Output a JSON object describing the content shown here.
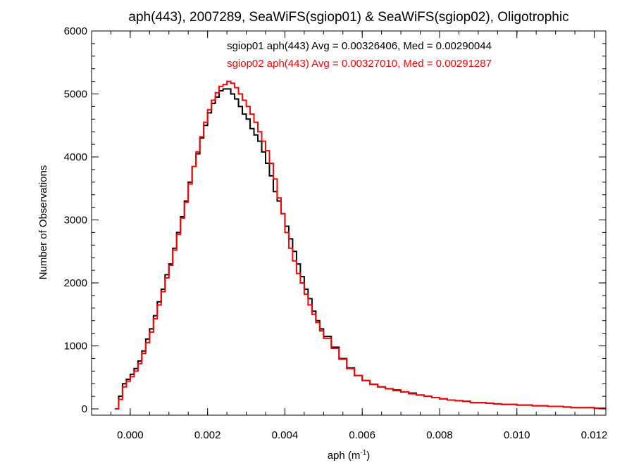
{
  "chart_data": {
    "type": "line",
    "title": "aph(443), 2007289, SeaWiFS(sgiop01) & SeaWiFS(sgiop02), Oligotrophic",
    "xlabel": "aph (m",
    "xlabel_sup": "-1",
    "xlabel_close": ")",
    "ylabel": "Number of Observations",
    "xlim": [
      -0.001,
      0.0123
    ],
    "ylim": [
      -100,
      6000
    ],
    "x_ticks": [
      0.0,
      0.002,
      0.004,
      0.006,
      0.008,
      0.01,
      0.012
    ],
    "x_tick_labels": [
      "0.000",
      "0.002",
      "0.004",
      "0.006",
      "0.008",
      "0.010",
      "0.012"
    ],
    "y_ticks": [
      0,
      1000,
      2000,
      3000,
      4000,
      5000,
      6000
    ],
    "y_tick_labels": [
      "0",
      "1000",
      "2000",
      "3000",
      "4000",
      "5000",
      "6000"
    ],
    "grid": false,
    "step_style": "histogram",
    "annotations": [
      {
        "text": "sgiop01 aph(443) Avg = 0.00326406, Med = 0.00290044",
        "color": "#000000"
      },
      {
        "text": "sgiop02 aph(443) Avg = 0.00327010, Med = 0.00291287",
        "color": "#ff0000"
      }
    ],
    "series": [
      {
        "color": "#000000",
        "x": [
          -0.0004,
          -0.0003,
          -0.0002,
          -0.0001,
          0.0,
          0.0001,
          0.0002,
          0.0003,
          0.0004,
          0.0005,
          0.0006,
          0.0007,
          0.0008,
          0.0009,
          0.001,
          0.0011,
          0.0012,
          0.0013,
          0.0014,
          0.0015,
          0.0016,
          0.0017,
          0.0018,
          0.0019,
          0.002,
          0.0021,
          0.0022,
          0.0023,
          0.0024,
          0.0025,
          0.0026,
          0.0027,
          0.0028,
          0.0029,
          0.003,
          0.0031,
          0.0032,
          0.0033,
          0.0034,
          0.0035,
          0.0036,
          0.0037,
          0.0038,
          0.0039,
          0.004,
          0.0041,
          0.0042,
          0.0043,
          0.0044,
          0.0045,
          0.0046,
          0.0047,
          0.0048,
          0.0049,
          0.005,
          0.0052,
          0.0054,
          0.0056,
          0.0058,
          0.006,
          0.0062,
          0.0064,
          0.0066,
          0.0068,
          0.007,
          0.0072,
          0.0074,
          0.0076,
          0.0078,
          0.008,
          0.0082,
          0.0084,
          0.0086,
          0.0088,
          0.009,
          0.0092,
          0.0094,
          0.0096,
          0.0098,
          0.01,
          0.0102,
          0.0104,
          0.0106,
          0.0108,
          0.011,
          0.0112,
          0.0114,
          0.0116,
          0.0118,
          0.012,
          0.0122
        ],
        "values": [
          0,
          200,
          400,
          470,
          550,
          640,
          760,
          920,
          1110,
          1270,
          1480,
          1700,
          1900,
          2130,
          2300,
          2550,
          2800,
          3050,
          3300,
          3600,
          3850,
          4050,
          4300,
          4500,
          4700,
          4850,
          4950,
          5050,
          5080,
          5080,
          5000,
          4920,
          4800,
          4680,
          4600,
          4450,
          4350,
          4250,
          4080,
          3900,
          3700,
          3450,
          3300,
          3100,
          2900,
          2700,
          2500,
          2300,
          2100,
          1900,
          1750,
          1550,
          1400,
          1270,
          1150,
          980,
          800,
          650,
          530,
          450,
          390,
          350,
          320,
          300,
          270,
          250,
          220,
          200,
          180,
          160,
          140,
          130,
          120,
          100,
          100,
          90,
          80,
          70,
          70,
          60,
          60,
          50,
          50,
          40,
          40,
          30,
          20,
          20,
          20,
          10,
          10
        ]
      },
      {
        "color": "#ff0000",
        "x": [
          -0.0004,
          -0.0003,
          -0.0002,
          -0.0001,
          0.0,
          0.0001,
          0.0002,
          0.0003,
          0.0004,
          0.0005,
          0.0006,
          0.0007,
          0.0008,
          0.0009,
          0.001,
          0.0011,
          0.0012,
          0.0013,
          0.0014,
          0.0015,
          0.0016,
          0.0017,
          0.0018,
          0.0019,
          0.002,
          0.0021,
          0.0022,
          0.0023,
          0.0024,
          0.0025,
          0.0026,
          0.0027,
          0.0028,
          0.0029,
          0.003,
          0.0031,
          0.0032,
          0.0033,
          0.0034,
          0.0035,
          0.0036,
          0.0037,
          0.0038,
          0.0039,
          0.004,
          0.0041,
          0.0042,
          0.0043,
          0.0044,
          0.0045,
          0.0046,
          0.0047,
          0.0048,
          0.0049,
          0.005,
          0.0052,
          0.0054,
          0.0056,
          0.0058,
          0.006,
          0.0062,
          0.0064,
          0.0066,
          0.0068,
          0.007,
          0.0072,
          0.0074,
          0.0076,
          0.0078,
          0.008,
          0.0082,
          0.0084,
          0.0086,
          0.0088,
          0.009,
          0.0092,
          0.0094,
          0.0096,
          0.0098,
          0.01,
          0.0102,
          0.0104,
          0.0106,
          0.0108,
          0.011,
          0.0112,
          0.0114,
          0.0116,
          0.0118,
          0.012,
          0.0122
        ],
        "values": [
          0,
          150,
          350,
          440,
          510,
          600,
          720,
          880,
          1050,
          1220,
          1430,
          1650,
          1860,
          2080,
          2280,
          2520,
          2770,
          3030,
          3280,
          3570,
          3850,
          4080,
          4320,
          4550,
          4750,
          4900,
          5020,
          5120,
          5150,
          5200,
          5170,
          5100,
          5000,
          4900,
          4800,
          4680,
          4550,
          4400,
          4250,
          4100,
          3900,
          3650,
          3350,
          3100,
          2800,
          2550,
          2350,
          2150,
          2000,
          1820,
          1650,
          1500,
          1370,
          1240,
          1120,
          960,
          790,
          640,
          530,
          450,
          390,
          350,
          320,
          290,
          270,
          240,
          220,
          200,
          180,
          160,
          140,
          130,
          120,
          100,
          100,
          90,
          80,
          70,
          70,
          60,
          60,
          50,
          50,
          40,
          40,
          30,
          20,
          20,
          20,
          10,
          10
        ]
      }
    ]
  }
}
